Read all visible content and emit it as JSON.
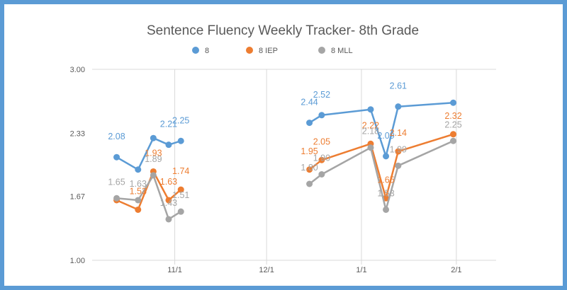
{
  "chart_data": {
    "type": "line",
    "title": "Sentence Fluency Weekly Tracker- 8th Grade",
    "xlabel": "",
    "ylabel": "",
    "ylim": [
      1.0,
      3.0
    ],
    "y_ticks": [
      "1.00",
      "1.67",
      "2.33",
      "3.00"
    ],
    "x_range": [
      "2016-10-05",
      "2017-02-14"
    ],
    "x_ticks": [
      {
        "label": "11/1",
        "date": "2016-11-01"
      },
      {
        "label": "12/1",
        "date": "2016-12-01"
      },
      {
        "label": "1/1",
        "date": "2017-01-01"
      },
      {
        "label": "2/1",
        "date": "2017-02-01"
      }
    ],
    "grid": "vertical",
    "legend": "top-center",
    "x": [
      "2016-10-13",
      "2016-10-20",
      "2016-10-25",
      "2016-10-30",
      "2016-11-03",
      "2016-12-15",
      "2016-12-19",
      "2017-01-04",
      "2017-01-09",
      "2017-01-13",
      "2017-01-31"
    ],
    "series": [
      {
        "name": "8",
        "color": "#5b9bd5",
        "values": [
          2.08,
          1.95,
          2.28,
          2.21,
          2.25,
          2.44,
          2.52,
          2.58,
          2.09,
          2.61,
          2.65
        ],
        "labels": [
          "2.08",
          null,
          null,
          "2.21",
          "2.25",
          "2.44",
          "2.52",
          null,
          "2.09",
          "2.61",
          null
        ]
      },
      {
        "name": "8 IEP",
        "color": "#ed7d31",
        "values": [
          1.63,
          1.53,
          1.93,
          1.63,
          1.74,
          1.95,
          2.05,
          2.22,
          1.65,
          2.14,
          2.32
        ],
        "labels": [
          null,
          "1.53",
          "1.93",
          "1.63",
          "1.74",
          "1.95",
          "2.05",
          "2.22",
          "1.65",
          "2.14",
          "2.32"
        ]
      },
      {
        "name": "8 MLL",
        "color": "#a5a5a5",
        "values": [
          1.65,
          1.63,
          1.89,
          1.43,
          1.51,
          1.8,
          1.9,
          2.18,
          1.53,
          1.99,
          2.25
        ],
        "labels": [
          "1.65",
          "1.63",
          "1.89",
          "1.43",
          "1.51",
          "1.80",
          "1.90",
          "2.18",
          "1.53",
          "1.99",
          "2.25"
        ]
      }
    ]
  }
}
